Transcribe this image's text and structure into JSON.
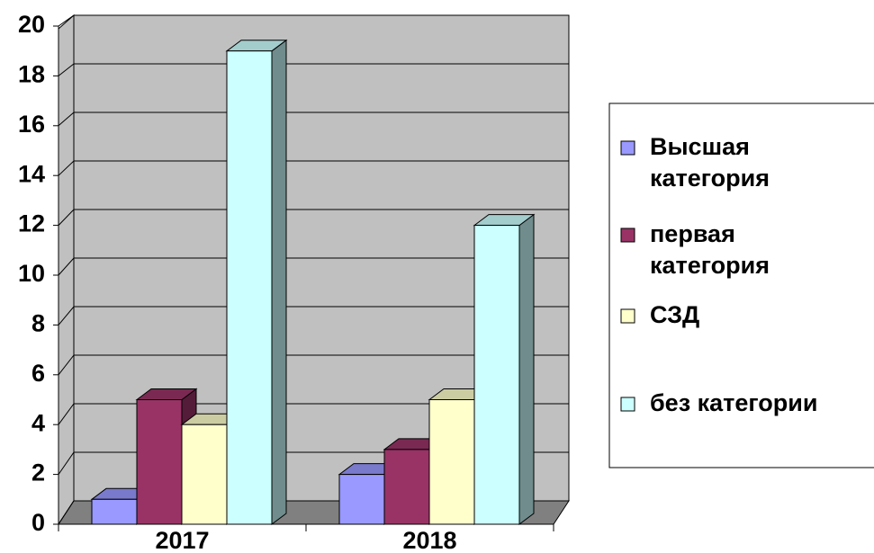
{
  "chart_data": {
    "type": "bar3d",
    "categories": [
      "2017",
      "2018"
    ],
    "series": [
      {
        "name": "Высшая категория",
        "color": "#9999ff",
        "values": [
          1,
          2
        ]
      },
      {
        "name": "первая категория",
        "color": "#993366",
        "values": [
          5,
          3
        ]
      },
      {
        "name": "СЗД",
        "color": "#ffffcc",
        "values": [
          4,
          5
        ]
      },
      {
        "name": "без категории",
        "color": "#ccffff",
        "values": [
          19,
          12
        ]
      }
    ],
    "ylim": [
      0,
      20
    ],
    "yticks": [
      0,
      2,
      4,
      6,
      8,
      10,
      12,
      14,
      16,
      18,
      20
    ],
    "grid": true,
    "legend": "right"
  }
}
